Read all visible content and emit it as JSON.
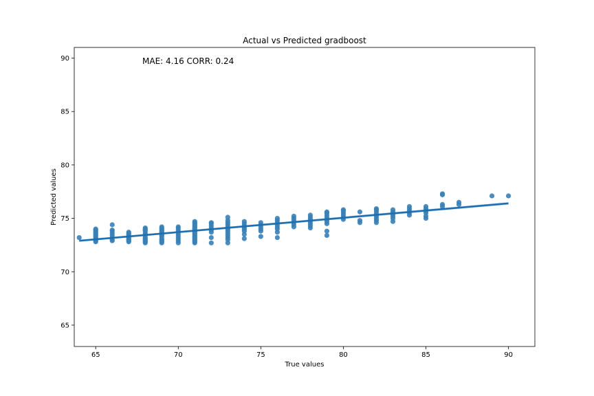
{
  "chart_data": {
    "type": "scatter",
    "title": "Actual vs Predicted gradboost",
    "xlabel": "True values",
    "ylabel": "Predicted values",
    "xlim": [
      63.7,
      91.6
    ],
    "ylim": [
      63.0,
      91.0
    ],
    "xticks": [
      65,
      70,
      75,
      80,
      85,
      90
    ],
    "yticks": [
      65,
      70,
      75,
      80,
      85,
      90
    ],
    "annotation": "MAE: 4.16   CORR: 0.24",
    "point_color": "#3a7fb5",
    "line_color": "#1f6fb0",
    "regression_line": {
      "x": [
        64,
        90
      ],
      "y": [
        72.9,
        76.4
      ]
    },
    "series": [
      {
        "x": 64,
        "y": [
          73.2
        ]
      },
      {
        "x": 65,
        "y": [
          72.8,
          72.9,
          73.0,
          73.1,
          73.2,
          73.3,
          73.4,
          73.5,
          73.6,
          73.7,
          73.8,
          73.9,
          74.0
        ]
      },
      {
        "x": 66,
        "y": [
          72.9,
          73.0,
          73.2,
          73.4,
          73.6,
          73.8,
          73.9,
          74.4
        ]
      },
      {
        "x": 67,
        "y": [
          72.8,
          72.9,
          73.0,
          73.1,
          73.2,
          73.3,
          73.4,
          73.5,
          73.6,
          73.7
        ]
      },
      {
        "x": 68,
        "y": [
          72.7,
          72.8,
          72.9,
          73.0,
          73.1,
          73.2,
          73.4,
          73.5,
          73.6,
          73.8,
          73.9,
          74.0,
          74.1
        ]
      },
      {
        "x": 69,
        "y": [
          72.7,
          72.8,
          72.9,
          73.0,
          73.1,
          73.3,
          73.4,
          73.5,
          73.6,
          73.7,
          73.8,
          73.9,
          74.0,
          74.1,
          74.2
        ]
      },
      {
        "x": 70,
        "y": [
          72.7,
          72.9,
          73.1,
          73.3,
          73.5,
          73.7,
          73.9,
          74.1,
          74.2
        ]
      },
      {
        "x": 71,
        "y": [
          72.7,
          72.8,
          72.9,
          73.0,
          73.1,
          73.2,
          73.3,
          73.4,
          73.5,
          73.6,
          73.7,
          73.8,
          73.9,
          74.0,
          74.1,
          74.2,
          74.3,
          74.4,
          74.5,
          74.6,
          74.7
        ]
      },
      {
        "x": 72,
        "y": [
          72.7,
          73.2,
          73.7,
          73.9,
          74.1,
          74.3,
          74.5,
          74.6
        ]
      },
      {
        "x": 73,
        "y": [
          72.7,
          73.0,
          73.2,
          73.4,
          73.6,
          73.8,
          74.0,
          74.2,
          74.4,
          74.6,
          74.8,
          75.1
        ]
      },
      {
        "x": 74,
        "y": [
          73.1,
          73.5,
          73.8,
          74.0,
          74.1,
          74.3,
          74.5,
          74.7
        ]
      },
      {
        "x": 75,
        "y": [
          73.3,
          73.8,
          74.0,
          74.2,
          74.4,
          74.6
        ]
      },
      {
        "x": 76,
        "y": [
          73.2,
          73.7,
          74.0,
          74.2,
          74.4,
          74.6,
          74.8,
          75.0
        ]
      },
      {
        "x": 77,
        "y": [
          74.2,
          74.4,
          74.6,
          74.8,
          75.0,
          75.2
        ]
      },
      {
        "x": 78,
        "y": [
          74.1,
          74.3,
          74.5,
          74.7,
          74.9,
          75.1,
          75.3
        ]
      },
      {
        "x": 79,
        "y": [
          73.4,
          73.8,
          74.5,
          74.7,
          74.9,
          75.1,
          75.3,
          75.5,
          75.6
        ]
      },
      {
        "x": 80,
        "y": [
          74.9,
          75.1,
          75.3,
          75.5,
          75.7,
          75.8
        ]
      },
      {
        "x": 81,
        "y": [
          74.6,
          74.8,
          75.6
        ]
      },
      {
        "x": 82,
        "y": [
          74.6,
          74.8,
          75.0,
          75.2,
          75.4,
          75.6,
          75.8,
          75.9
        ]
      },
      {
        "x": 83,
        "y": [
          74.7,
          75.0,
          75.2,
          75.4,
          75.6,
          75.8
        ]
      },
      {
        "x": 84,
        "y": [
          75.3,
          75.5,
          75.7,
          75.9,
          76.1
        ]
      },
      {
        "x": 85,
        "y": [
          75.0,
          75.2,
          75.5,
          75.7,
          75.9,
          76.1
        ]
      },
      {
        "x": 86,
        "y": [
          76.1,
          76.3,
          77.2,
          77.3
        ]
      },
      {
        "x": 87,
        "y": [
          76.3,
          76.5
        ]
      },
      {
        "x": 89,
        "y": [
          77.1
        ]
      },
      {
        "x": 90,
        "y": [
          77.1
        ]
      }
    ]
  }
}
